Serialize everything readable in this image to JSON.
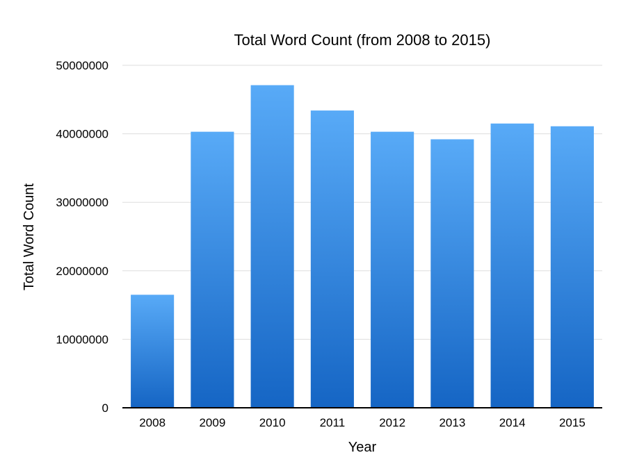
{
  "chart_data": {
    "type": "bar",
    "title": "Total Word Count (from 2008 to 2015)",
    "xlabel": "Year",
    "ylabel": "Total Word Count",
    "categories": [
      "2008",
      "2009",
      "2010",
      "2011",
      "2012",
      "2013",
      "2014",
      "2015"
    ],
    "values": [
      16500000,
      40300000,
      47100000,
      43400000,
      40300000,
      39200000,
      41500000,
      41100000
    ],
    "ylim": [
      0,
      50000000
    ],
    "yticks": [
      0,
      10000000,
      20000000,
      30000000,
      40000000,
      50000000
    ],
    "grid": true,
    "legend": "none",
    "colors": {
      "bar_top": "#58aaf7",
      "bar_bottom": "#1565c4",
      "gridline": "#dddddd",
      "axis": "#000000"
    }
  }
}
